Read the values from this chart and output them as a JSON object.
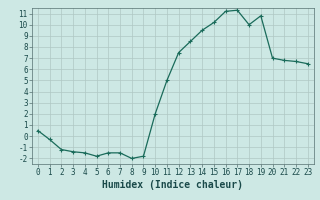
{
  "x": [
    0,
    1,
    2,
    3,
    4,
    5,
    6,
    7,
    8,
    9,
    10,
    11,
    12,
    13,
    14,
    15,
    16,
    17,
    18,
    19,
    20,
    21,
    22,
    23
  ],
  "y": [
    0.5,
    -0.3,
    -1.2,
    -1.4,
    -1.5,
    -1.8,
    -1.5,
    -1.5,
    -2.0,
    -1.8,
    2.0,
    5.0,
    7.5,
    8.5,
    9.5,
    10.2,
    11.2,
    11.3,
    10.0,
    10.8,
    7.0,
    6.8,
    6.7,
    6.5
  ],
  "line_color": "#1a6b5a",
  "marker": "+",
  "marker_size": 3,
  "title": "",
  "xlabel": "Humidex (Indice chaleur)",
  "ylabel": "",
  "xlim": [
    -0.5,
    23.5
  ],
  "ylim": [
    -2.5,
    11.5
  ],
  "yticks": [
    -2,
    -1,
    0,
    1,
    2,
    3,
    4,
    5,
    6,
    7,
    8,
    9,
    10,
    11
  ],
  "xticks": [
    0,
    1,
    2,
    3,
    4,
    5,
    6,
    7,
    8,
    9,
    10,
    11,
    12,
    13,
    14,
    15,
    16,
    17,
    18,
    19,
    20,
    21,
    22,
    23
  ],
  "bg_color": "#cde8e4",
  "grid_color": "#b0c8c4",
  "tick_label_fontsize": 5.5,
  "xlabel_fontsize": 7.0,
  "line_width": 0.9
}
